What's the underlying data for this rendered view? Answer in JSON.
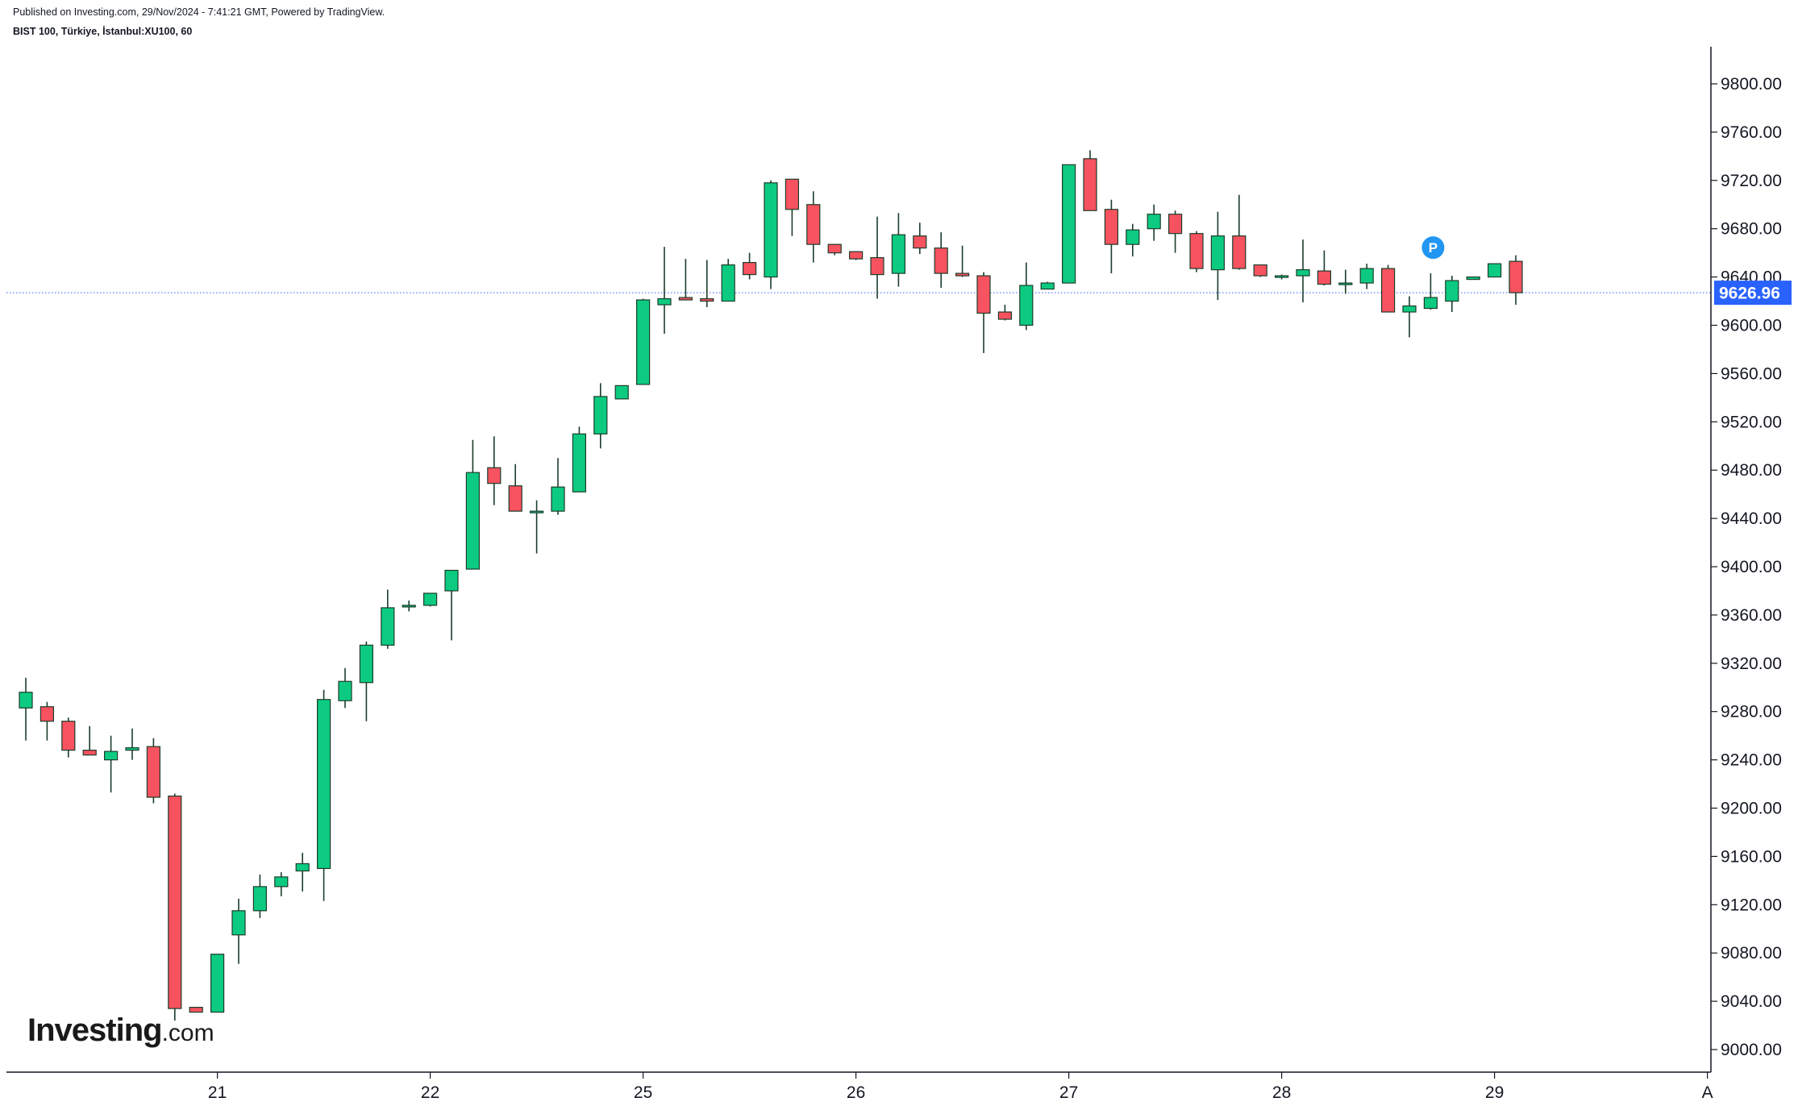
{
  "header": {
    "published": "Published on Investing.com, 29/Nov/2024 - 7:41:21 GMT, Powered by TradingView.",
    "symbol": "BIST 100, Türkiye, İstanbul:XU100, 60"
  },
  "logo": {
    "main": "Investing",
    "tld": ".com"
  },
  "colors": {
    "up": "#0ccb80",
    "down": "#f7525f",
    "wick": "#1c3d2b",
    "price_line": "#2962ff",
    "price_label_bg": "#2962ff",
    "marker_bg": "#2196f3"
  },
  "chart_data": {
    "type": "candlestick",
    "title": "BIST 100, Türkiye, İstanbul:XU100, 60",
    "interval": "60",
    "ylim": [
      8988,
      9828
    ],
    "y_ticks": [
      "9000.00",
      "9040.00",
      "9080.00",
      "9120.00",
      "9160.00",
      "9200.00",
      "9240.00",
      "9280.00",
      "9320.00",
      "9360.00",
      "9400.00",
      "9440.00",
      "9480.00",
      "9520.00",
      "9560.00",
      "9600.00",
      "9640.00",
      "9680.00",
      "9720.00",
      "9760.00",
      "9800.00"
    ],
    "x_ticks": [
      {
        "label": "21",
        "index": 9
      },
      {
        "label": "22",
        "index": 19
      },
      {
        "label": "25",
        "index": 29
      },
      {
        "label": "26",
        "index": 39
      },
      {
        "label": "27",
        "index": 49
      },
      {
        "label": "28",
        "index": 59
      },
      {
        "label": "29",
        "index": 69
      },
      {
        "label": "A",
        "index": 79
      }
    ],
    "last_price": "9626.96",
    "last_price_value": 9626.96,
    "marker": {
      "label": "P",
      "index": 66,
      "price": 9667
    },
    "candles": [
      {
        "o": 9283,
        "h": 9308,
        "l": 9256,
        "c": 9296
      },
      {
        "o": 9284,
        "h": 9288,
        "l": 9256,
        "c": 9272
      },
      {
        "o": 9272,
        "h": 9275,
        "l": 9242,
        "c": 9248
      },
      {
        "o": 9248,
        "h": 9268,
        "l": 9244,
        "c": 9244
      },
      {
        "o": 9240,
        "h": 9260,
        "l": 9213,
        "c": 9247
      },
      {
        "o": 9248,
        "h": 9266,
        "l": 9240,
        "c": 9250
      },
      {
        "o": 9251,
        "h": 9258,
        "l": 9204,
        "c": 9209
      },
      {
        "o": 9210,
        "h": 9212,
        "l": 9024,
        "c": 9034
      },
      {
        "o": 9035,
        "h": 9035,
        "l": 9031,
        "c": 9031
      },
      {
        "o": 9031,
        "h": 9079,
        "l": 9031,
        "c": 9079
      },
      {
        "o": 9095,
        "h": 9125,
        "l": 9071,
        "c": 9115
      },
      {
        "o": 9115,
        "h": 9145,
        "l": 9109,
        "c": 9135
      },
      {
        "o": 9135,
        "h": 9147,
        "l": 9127,
        "c": 9143
      },
      {
        "o": 9148,
        "h": 9163,
        "l": 9131,
        "c": 9154
      },
      {
        "o": 9150,
        "h": 9298,
        "l": 9123,
        "c": 9290
      },
      {
        "o": 9289,
        "h": 9316,
        "l": 9283,
        "c": 9305
      },
      {
        "o": 9304,
        "h": 9338,
        "l": 9272,
        "c": 9335
      },
      {
        "o": 9335,
        "h": 9381,
        "l": 9332,
        "c": 9366
      },
      {
        "o": 9368,
        "h": 9372,
        "l": 9363,
        "c": 9368
      },
      {
        "o": 9368,
        "h": 9378,
        "l": 9367,
        "c": 9378
      },
      {
        "o": 9380,
        "h": 9397,
        "l": 9339,
        "c": 9397
      },
      {
        "o": 9398,
        "h": 9505,
        "l": 9398,
        "c": 9478
      },
      {
        "o": 9482,
        "h": 9508,
        "l": 9451,
        "c": 9469
      },
      {
        "o": 9467,
        "h": 9485,
        "l": 9446,
        "c": 9446
      },
      {
        "o": 9446,
        "h": 9455,
        "l": 9411,
        "c": 9446
      },
      {
        "o": 9446,
        "h": 9490,
        "l": 9443,
        "c": 9466
      },
      {
        "o": 9462,
        "h": 9516,
        "l": 9462,
        "c": 9510
      },
      {
        "o": 9510,
        "h": 9552,
        "l": 9498,
        "c": 9541
      },
      {
        "o": 9539,
        "h": 9550,
        "l": 9539,
        "c": 9550
      },
      {
        "o": 9551,
        "h": 9622,
        "l": 9551,
        "c": 9621
      },
      {
        "o": 9617,
        "h": 9665,
        "l": 9593,
        "c": 9622
      },
      {
        "o": 9623,
        "h": 9655,
        "l": 9622,
        "c": 9621
      },
      {
        "o": 9622,
        "h": 9654,
        "l": 9615,
        "c": 9620
      },
      {
        "o": 9620,
        "h": 9655,
        "l": 9620,
        "c": 9650
      },
      {
        "o": 9652,
        "h": 9660,
        "l": 9638,
        "c": 9642
      },
      {
        "o": 9640,
        "h": 9720,
        "l": 9630,
        "c": 9718
      },
      {
        "o": 9721,
        "h": 9721,
        "l": 9674,
        "c": 9696
      },
      {
        "o": 9700,
        "h": 9711,
        "l": 9652,
        "c": 9667
      },
      {
        "o": 9667,
        "h": 9667,
        "l": 9658,
        "c": 9660
      },
      {
        "o": 9661,
        "h": 9661,
        "l": 9654,
        "c": 9655
      },
      {
        "o": 9656,
        "h": 9690,
        "l": 9622,
        "c": 9642
      },
      {
        "o": 9643,
        "h": 9693,
        "l": 9632,
        "c": 9675
      },
      {
        "o": 9674,
        "h": 9685,
        "l": 9659,
        "c": 9664
      },
      {
        "o": 9664,
        "h": 9677,
        "l": 9631,
        "c": 9643
      },
      {
        "o": 9643,
        "h": 9666,
        "l": 9640,
        "c": 9641
      },
      {
        "o": 9641,
        "h": 9644,
        "l": 9577,
        "c": 9610
      },
      {
        "o": 9611,
        "h": 9617,
        "l": 9604,
        "c": 9605
      },
      {
        "o": 9600,
        "h": 9652,
        "l": 9596,
        "c": 9633
      },
      {
        "o": 9630,
        "h": 9636,
        "l": 9630,
        "c": 9635
      },
      {
        "o": 9635,
        "h": 9733,
        "l": 9635,
        "c": 9733
      },
      {
        "o": 9738,
        "h": 9745,
        "l": 9695,
        "c": 9695
      },
      {
        "o": 9696,
        "h": 9704,
        "l": 9643,
        "c": 9667
      },
      {
        "o": 9667,
        "h": 9684,
        "l": 9657,
        "c": 9679
      },
      {
        "o": 9680,
        "h": 9700,
        "l": 9670,
        "c": 9692
      },
      {
        "o": 9692,
        "h": 9695,
        "l": 9660,
        "c": 9676
      },
      {
        "o": 9676,
        "h": 9678,
        "l": 9644,
        "c": 9647
      },
      {
        "o": 9646,
        "h": 9694,
        "l": 9621,
        "c": 9674
      },
      {
        "o": 9674,
        "h": 9708,
        "l": 9646,
        "c": 9647
      },
      {
        "o": 9650,
        "h": 9650,
        "l": 9640,
        "c": 9641
      },
      {
        "o": 9641,
        "h": 9642,
        "l": 9638,
        "c": 9641
      },
      {
        "o": 9641,
        "h": 9671,
        "l": 9619,
        "c": 9646
      },
      {
        "o": 9645,
        "h": 9662,
        "l": 9633,
        "c": 9634
      },
      {
        "o": 9634,
        "h": 9646,
        "l": 9626,
        "c": 9635
      },
      {
        "o": 9635,
        "h": 9651,
        "l": 9630,
        "c": 9647
      },
      {
        "o": 9647,
        "h": 9650,
        "l": 9611,
        "c": 9611
      },
      {
        "o": 9611,
        "h": 9624,
        "l": 9590,
        "c": 9616
      },
      {
        "o": 9614,
        "h": 9643,
        "l": 9613,
        "c": 9623
      },
      {
        "o": 9620,
        "h": 9641,
        "l": 9611,
        "c": 9637
      },
      {
        "o": 9638,
        "h": 9640,
        "l": 9638,
        "c": 9640
      },
      {
        "o": 9640,
        "h": 9651,
        "l": 9640,
        "c": 9651
      },
      {
        "o": 9653,
        "h": 9658,
        "l": 9617,
        "c": 9627
      }
    ]
  }
}
